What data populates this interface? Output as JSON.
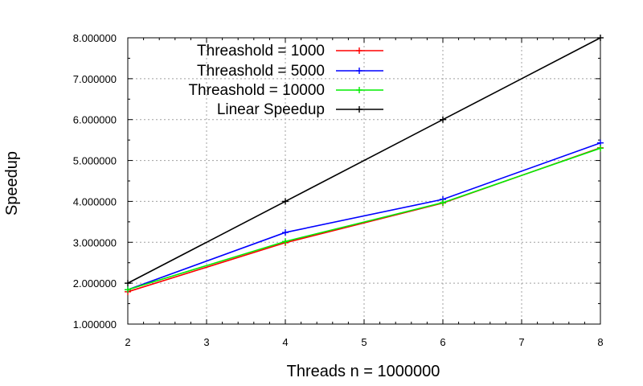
{
  "chart_data": {
    "type": "line",
    "title": "",
    "xlabel": "Threads n = 1000000",
    "ylabel": "Speedup",
    "xlim": [
      2,
      8
    ],
    "ylim": [
      1,
      8
    ],
    "x_ticks": [
      2,
      3,
      4,
      5,
      6,
      7,
      8
    ],
    "x_tick_labels": [
      "2",
      "3",
      "4",
      "5",
      "6",
      "7",
      "8"
    ],
    "y_ticks": [
      1,
      2,
      3,
      4,
      5,
      6,
      7,
      8
    ],
    "y_tick_labels": [
      "1.000000",
      "2.000000",
      "3.000000",
      "4.000000",
      "5.000000",
      "6.000000",
      "7.000000",
      "8.000000"
    ],
    "grid": true,
    "legend_position": "top-left",
    "x": [
      2,
      4,
      6,
      8
    ],
    "series": [
      {
        "name": "Threashold = 1000",
        "color": "#ff0000",
        "values": [
          1.79,
          2.99,
          3.96,
          5.31
        ]
      },
      {
        "name": "Threashold = 5000",
        "color": "#0000ff",
        "values": [
          1.84,
          3.24,
          4.05,
          5.43
        ]
      },
      {
        "name": "Threashold = 10000",
        "color": "#00ee00",
        "values": [
          1.84,
          3.02,
          3.97,
          5.3
        ]
      },
      {
        "name": "Linear Speedup",
        "color": "#000000",
        "values": [
          2.0,
          4.0,
          6.0,
          8.0
        ]
      }
    ]
  }
}
